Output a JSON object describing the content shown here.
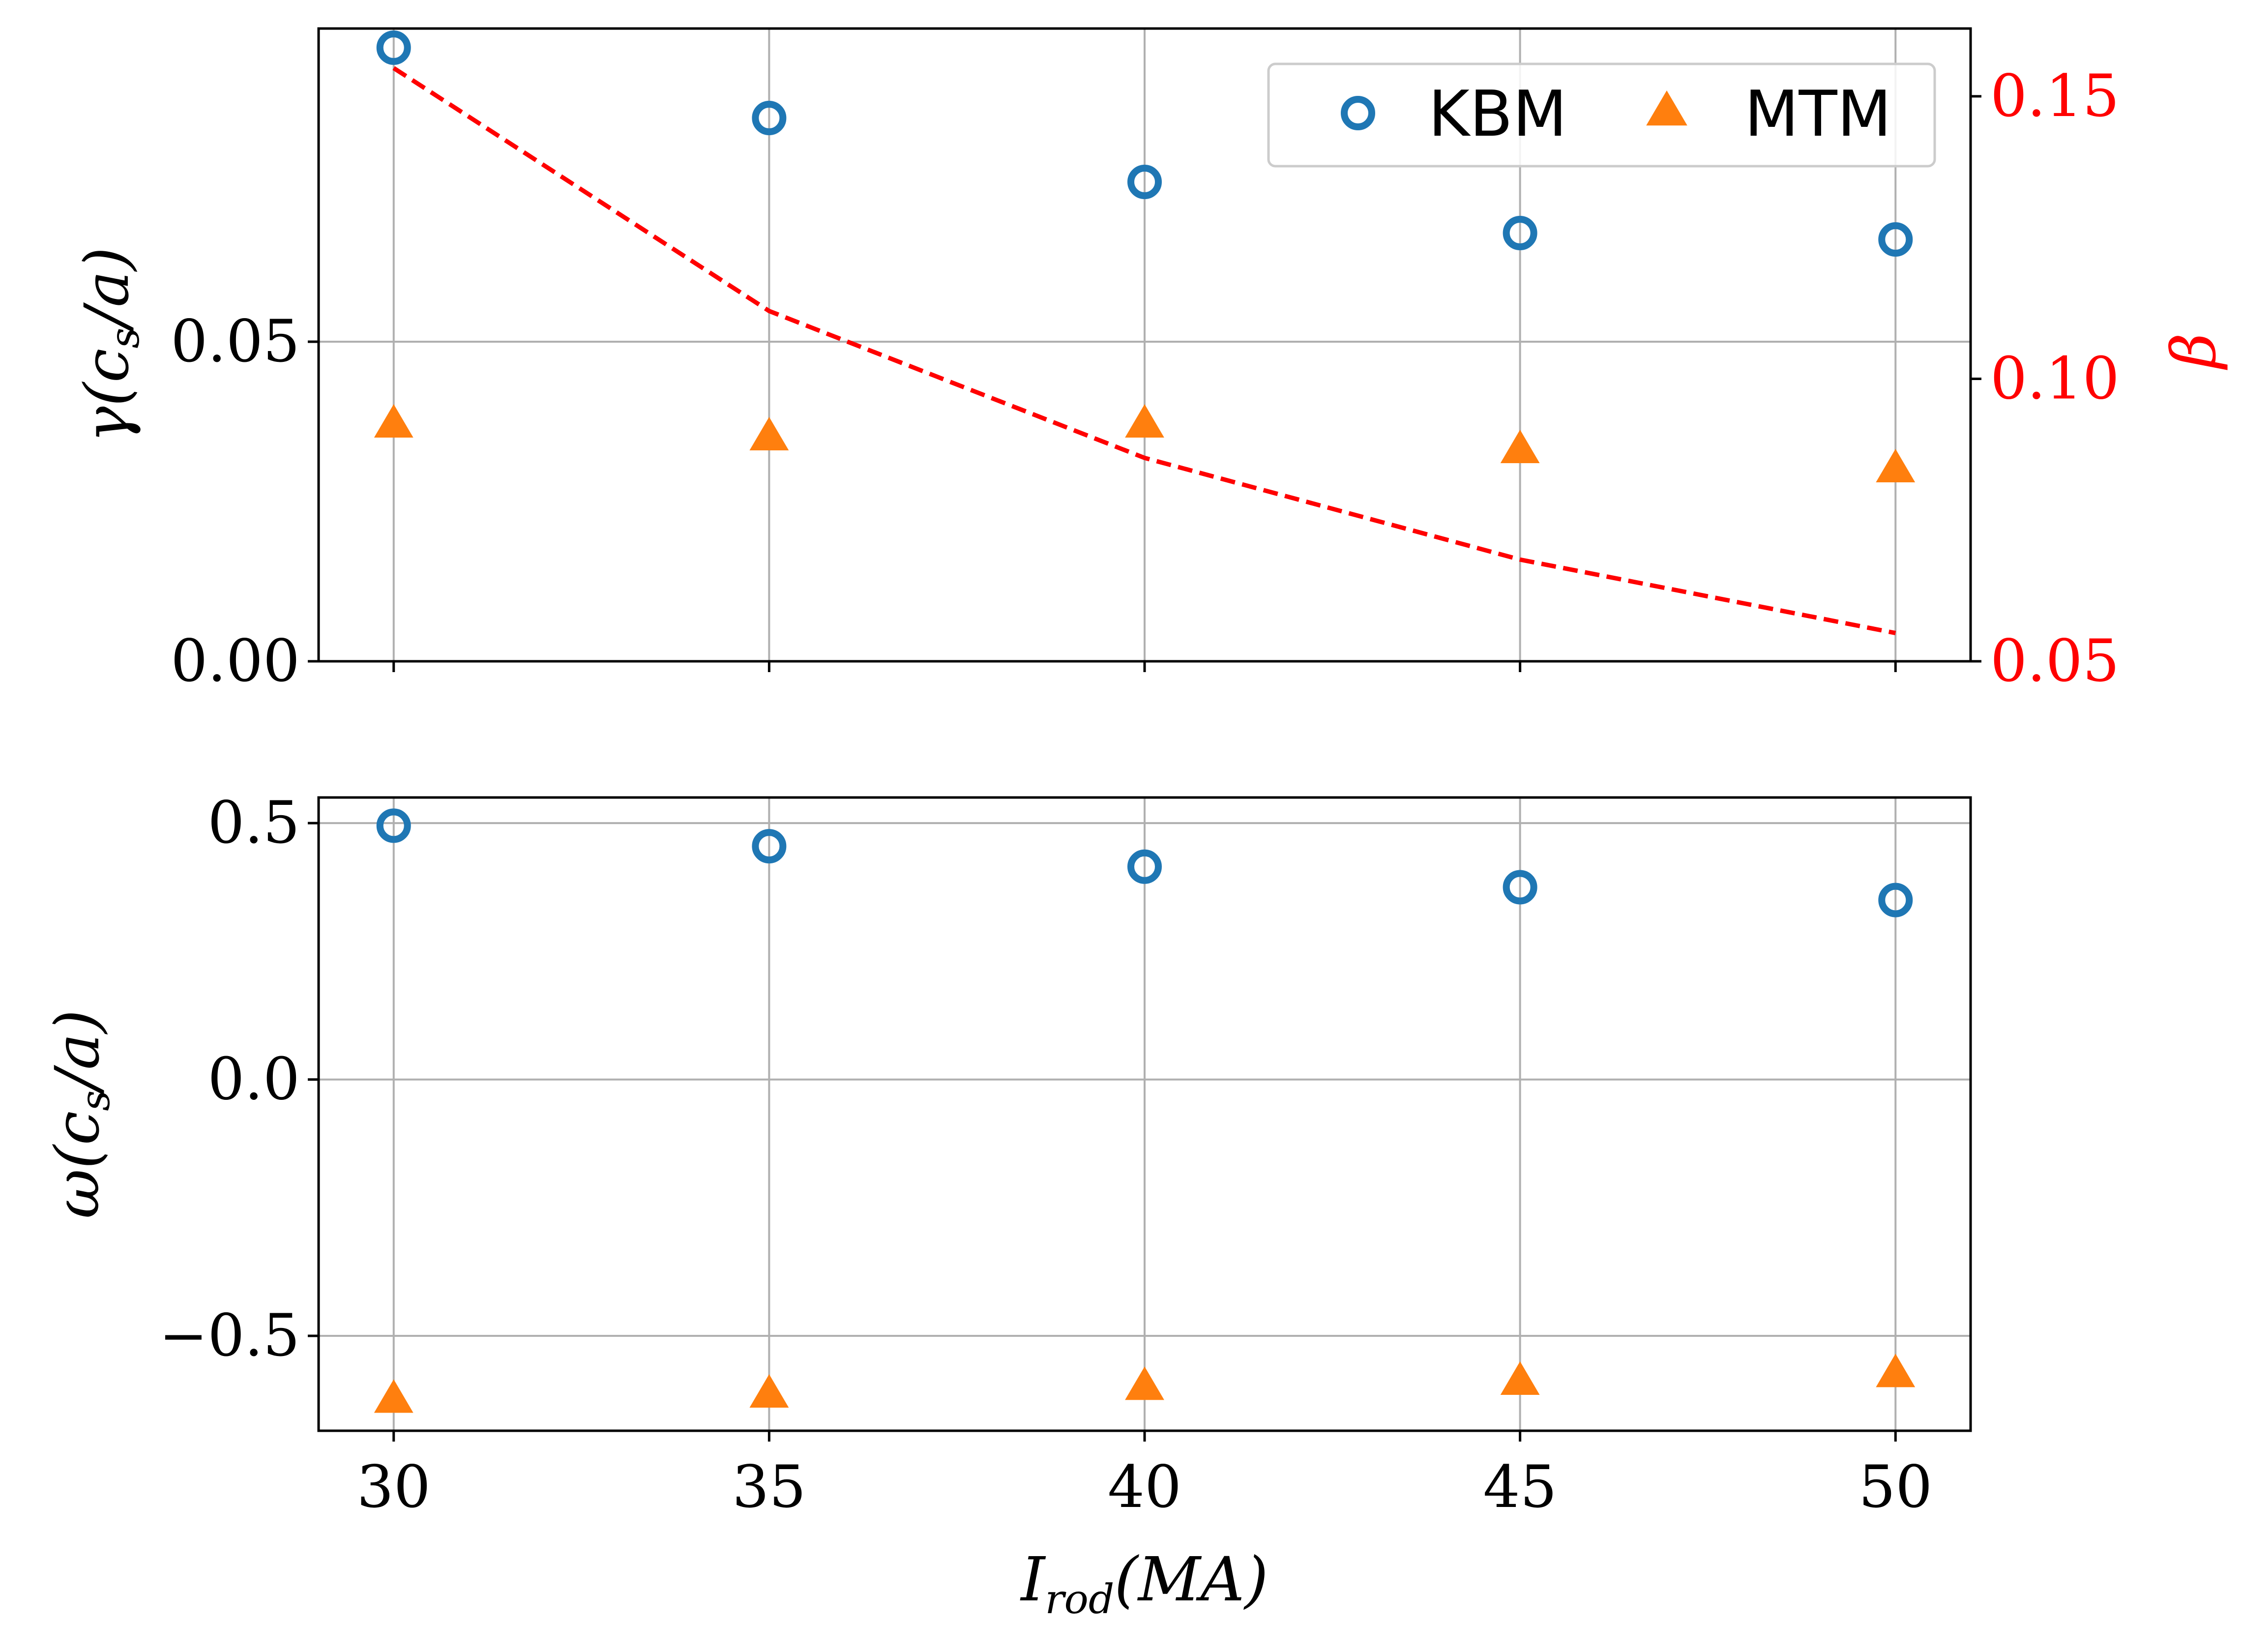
{
  "chart_data": [
    {
      "type": "scatter",
      "panel": "top",
      "x": [
        30,
        35,
        40,
        45,
        50
      ],
      "xlim": [
        29,
        51
      ],
      "xticks": [
        "30",
        "35",
        "40",
        "45",
        "50"
      ],
      "ylim": [
        0,
        0.099
      ],
      "yticks": [
        "0.00",
        "0.05"
      ],
      "ylabel": {
        "main": "γ(c",
        "sub": "s",
        "tail": "/a)"
      },
      "grid": true,
      "series": [
        {
          "name": "KBM",
          "marker": "circle-open",
          "color": "#1f77b4",
          "values": [
            0.096,
            0.085,
            0.075,
            0.067,
            0.066
          ]
        },
        {
          "name": "MTM",
          "marker": "triangle",
          "color": "#ff7f0e",
          "values": [
            0.037,
            0.035,
            0.037,
            0.033,
            0.03
          ]
        }
      ],
      "secondary_axis": {
        "label": "β",
        "color": "#ff0000",
        "ylim": [
          0.05,
          0.162
        ],
        "yticks": [
          "0.05",
          "0.10",
          "0.15"
        ],
        "series": {
          "name": "β",
          "style": "dashed",
          "color": "#ff0000",
          "values": [
            0.155,
            0.112,
            0.086,
            0.068,
            0.055
          ]
        }
      },
      "legend": {
        "position": "top-right",
        "entries": [
          "KBM",
          "MTM"
        ]
      }
    },
    {
      "type": "scatter",
      "panel": "bottom",
      "x": [
        30,
        35,
        40,
        45,
        50
      ],
      "xlim": [
        29,
        51
      ],
      "xticks": [
        "30",
        "35",
        "40",
        "45",
        "50"
      ],
      "xlabel": {
        "main": "I",
        "sub": "rod",
        "tail": "(MA)"
      },
      "ylim": [
        -0.685,
        0.55
      ],
      "yticks": [
        "−0.5",
        "0.0",
        "0.5"
      ],
      "ylabel": {
        "main": "ω(c",
        "sub": "s",
        "tail": "/a)"
      },
      "grid": true,
      "series": [
        {
          "name": "KBM",
          "marker": "circle-open",
          "color": "#1f77b4",
          "values": [
            0.495,
            0.455,
            0.415,
            0.375,
            0.35
          ]
        },
        {
          "name": "MTM",
          "marker": "triangle",
          "color": "#ff7f0e",
          "values": [
            -0.625,
            -0.615,
            -0.6,
            -0.59,
            -0.575
          ]
        }
      ]
    }
  ]
}
